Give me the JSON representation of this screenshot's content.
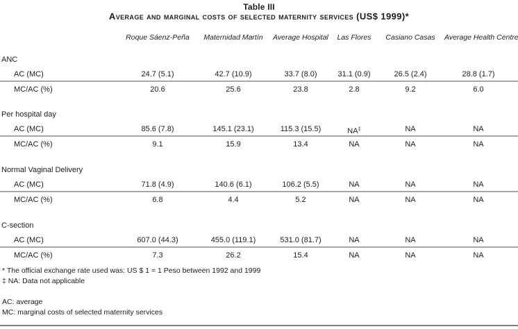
{
  "table": {
    "title": "Table III",
    "subtitle_main": "Average and marginal costs of selected maternity services",
    "subtitle_paren": "(US$ 1999)*",
    "columns": [
      "Roque Sáenz-Peña",
      "Maternidad Martín",
      "Average Hospital",
      "Las Flores",
      "Casiano Casas",
      "Average Health Centre"
    ],
    "row_labels": {
      "ac": "AC (MC)",
      "mcac": "MC/AC (%)"
    },
    "na_note_symbol": "‡",
    "sections": [
      {
        "label": "ANC",
        "ac": [
          "24.7 (5.1)",
          "42.7 (10.9)",
          "33.7 (8.0)",
          "31.1 (0.9)",
          "26.5 (2.4)",
          "28.8 (1.7)"
        ],
        "mcac": [
          "20.6",
          "25.6",
          "23.8",
          "2.8",
          "9.2",
          "6.0"
        ]
      },
      {
        "label": "Per hospital day",
        "ac": [
          "85.6 (7.8)",
          "145.1 (23.1)",
          "115.3 (15.5)",
          "NA",
          "NA",
          "NA"
        ],
        "mcac": [
          "9.1",
          "15.9",
          "13.4",
          "NA",
          "NA",
          "NA"
        ]
      },
      {
        "label": "Normal Vaginal Delivery",
        "ac": [
          "71.8 (4.9)",
          "140.6 (6.1)",
          "106.2 (5.5)",
          "NA",
          "NA",
          "NA"
        ],
        "mcac": [
          "6.8",
          "4.4",
          "5.2",
          "NA",
          "NA",
          "NA"
        ]
      },
      {
        "label": "C-section",
        "ac": [
          "607.0 (44.3)",
          "455.0 (119.1)",
          "531.0 (81.7)",
          "NA",
          "NA",
          "NA"
        ],
        "mcac": [
          "7.3",
          "26.2",
          "15.4",
          "NA",
          "NA",
          "NA"
        ]
      }
    ],
    "footnotes": [
      "* The official exchange rate used was: US $ 1 = 1 Peso between 1992 and 1999",
      "‡ NA: Data not applicable"
    ],
    "abbreviations": [
      "AC: average",
      "MC: marginal costs of selected maternity services"
    ],
    "colors": {
      "rule_light": "#a9a9a9",
      "rule_dark": "#7f7f7f"
    }
  }
}
